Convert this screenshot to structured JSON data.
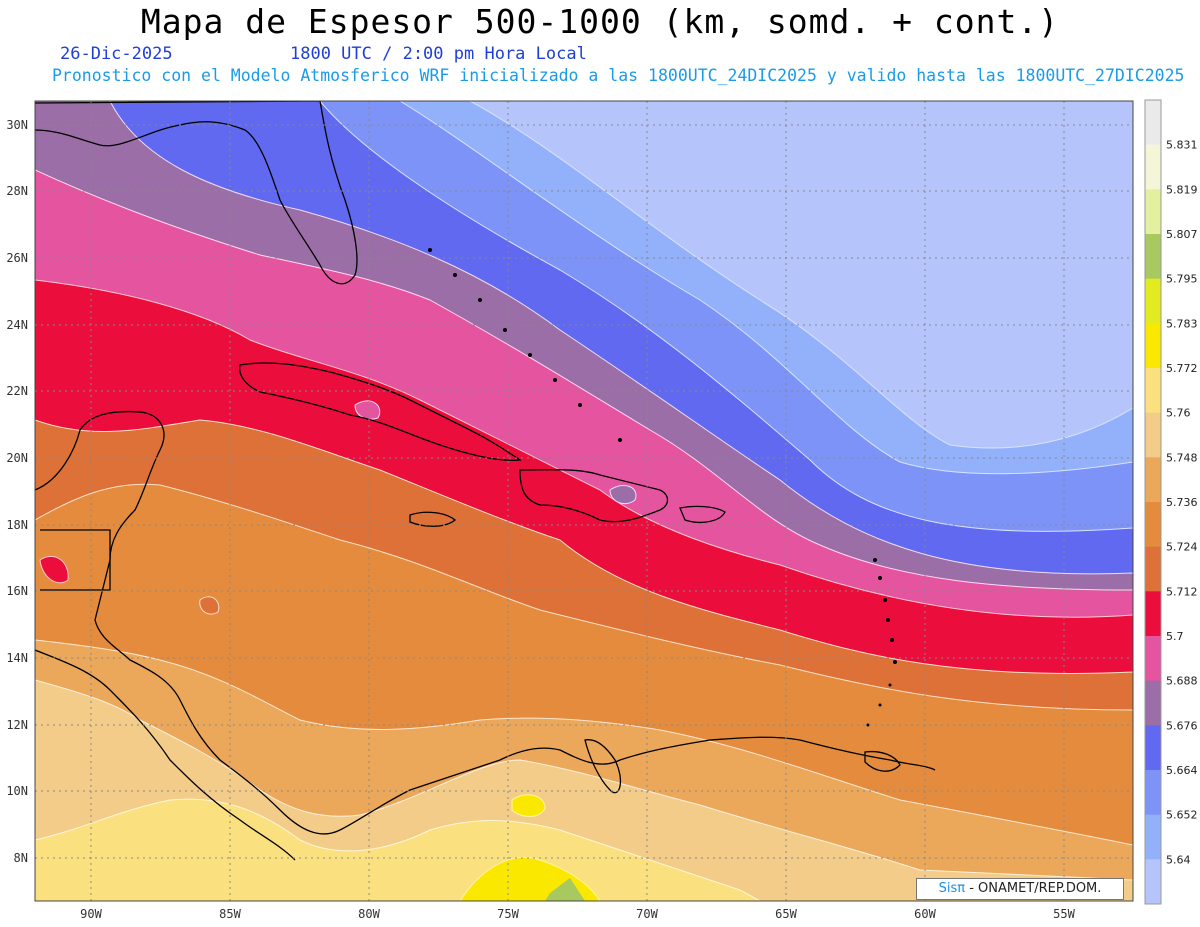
{
  "header": {
    "title": "Mapa de Espesor 500-1000 (km, somd. + cont.)",
    "date": "26-Dic-2025",
    "time": "1800 UTC / 2:00 pm Hora Local",
    "description": "Pronostico con el Modelo Atmosferico WRF inicializado a las 1800UTC_24DIC2025 y valido hasta las  1800UTC_27DIC2025"
  },
  "map": {
    "lat_labels": [
      "30N",
      "28N",
      "26N",
      "24N",
      "22N",
      "20N",
      "18N",
      "16N",
      "14N",
      "12N",
      "10N",
      "8N"
    ],
    "lon_labels": [
      "90W",
      "85W",
      "80W",
      "75W",
      "70W",
      "65W",
      "60W",
      "55W"
    ]
  },
  "colorbar": {
    "labels": [
      "5.831",
      "5.819",
      "5.807",
      "5.795",
      "5.783",
      "5.772",
      "5.76",
      "5.748",
      "5.736",
      "5.724",
      "5.712",
      "5.7",
      "5.688",
      "5.676",
      "5.664",
      "5.652",
      "5.64"
    ],
    "colors": [
      "#eaeaea",
      "#f5f6d8",
      "#e3f0a0",
      "#a8c860",
      "#e2ea20",
      "#fbe800",
      "#fbe080",
      "#f2cc88",
      "#eba75a",
      "#e48b3d",
      "#dd7138",
      "#eb0d3c",
      "#e5559f",
      "#9b6ea8",
      "#6069f0",
      "#7e93f8",
      "#93b1fa",
      "#b5c5fb"
    ]
  },
  "credit": {
    "brand": "Sisπ",
    "text": " - ONAMET/REP.DOM."
  }
}
